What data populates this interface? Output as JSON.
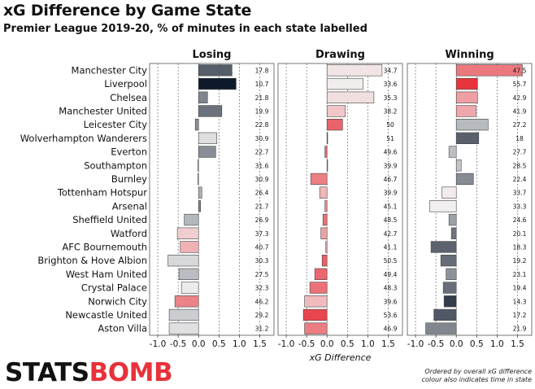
{
  "title": "xG Difference by Game State",
  "subtitle": "Premier League 2019-20, % of minutes in each state labelled",
  "logo": {
    "part1": "STATS",
    "part2": "BOMB"
  },
  "footnote": {
    "line1": "Ordered by overall xG difference",
    "line2": "colour also indicates time in state"
  },
  "chart_data": {
    "type": "bar",
    "orientation": "horizontal",
    "xlabel": "xG Difference",
    "xlim": [
      -1.2,
      1.85
    ],
    "xticks": [
      -1.0,
      -0.5,
      0.0,
      0.5,
      1.0,
      1.5
    ],
    "xtick_labels": [
      "-1.0",
      "-0.5",
      "0.0",
      "0.5",
      "1.0",
      "1.5"
    ],
    "grid": "dashed vertical",
    "categories": [
      "Manchester City",
      "Liverpool",
      "Chelsea",
      "Manchester United",
      "Leicester City",
      "Wolverhampton Wanderers",
      "Everton",
      "Southampton",
      "Burnley",
      "Tottenham Hotspur",
      "Arsenal",
      "Sheffield United",
      "Watford",
      "AFC Bournemouth",
      "Brighton & Hove Albion",
      "West Ham United",
      "Crystal Palace",
      "Norwich City",
      "Newcastle United",
      "Aston Villa"
    ],
    "panels": [
      {
        "name": "Losing",
        "values": [
          0.82,
          0.92,
          0.22,
          0.57,
          -0.08,
          0.45,
          0.42,
          -0.02,
          -0.02,
          0.08,
          0.05,
          -0.35,
          -0.52,
          -0.45,
          -0.75,
          -0.48,
          -0.42,
          -0.58,
          -0.72,
          -0.72
        ],
        "labels": [
          "17.8",
          "10.7",
          "21.8",
          "19.9",
          "22.8",
          "30.9",
          "22.7",
          "31.6",
          "30.9",
          "26.4",
          "21.7",
          "26.9",
          "37.3",
          "40.7",
          "30.3",
          "27.5",
          "32.3",
          "46.2",
          "29.2",
          "31.2"
        ]
      },
      {
        "name": "Drawing",
        "values": [
          1.35,
          0.88,
          1.15,
          0.45,
          0.38,
          0.01,
          -0.05,
          0.01,
          -0.4,
          -0.18,
          -0.05,
          -0.1,
          -0.15,
          -0.03,
          -0.12,
          -0.3,
          -0.42,
          -0.55,
          -0.58,
          -0.55
        ],
        "labels": [
          "34.7",
          "33.6",
          "35.3",
          "38.2",
          "50",
          "51",
          "49.6",
          "39.9",
          "46.7",
          "39.9",
          "45.1",
          "48.5",
          "42.7",
          "41.1",
          "50.5",
          "49.4",
          "48.3",
          "39.6",
          "53.6",
          "46.9"
        ]
      },
      {
        "name": "Winning",
        "values": [
          1.62,
          0.52,
          0.52,
          0.48,
          0.78,
          0.55,
          -0.18,
          0.12,
          0.42,
          -0.35,
          -0.65,
          -0.18,
          -0.12,
          -0.62,
          -0.38,
          -0.25,
          -0.32,
          -0.3,
          -0.55,
          -0.75
        ],
        "labels": [
          "47.5",
          "55.7",
          "42.9",
          "41.9",
          "27.2",
          "18",
          "27.7",
          "28.5",
          "22.4",
          "33.7",
          "33.3",
          "24.6",
          "20.1",
          "18.3",
          "19.2",
          "23.1",
          "19.4",
          "14.3",
          "17.2",
          "21.9"
        ]
      }
    ],
    "color_scale": {
      "low": "#071225",
      "mid": "#f2f2f2",
      "high": "#e8313a",
      "domain": [
        10,
        33,
        56
      ]
    }
  }
}
